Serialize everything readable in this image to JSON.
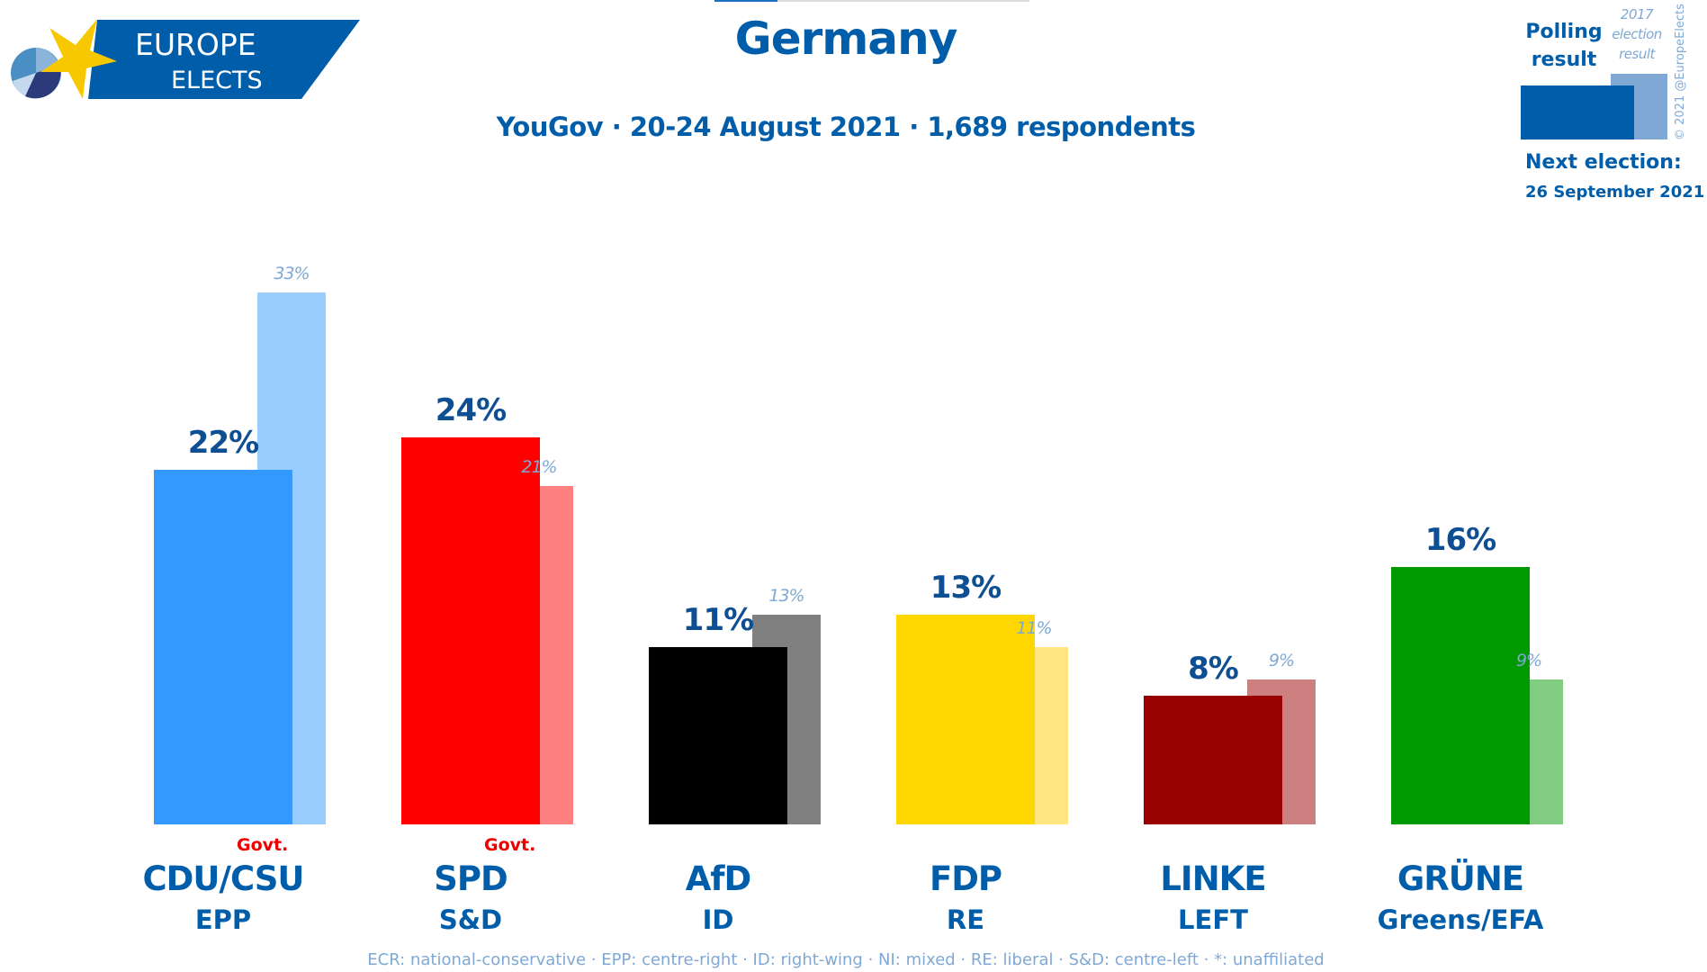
{
  "logo": {
    "line1": "EUROPE",
    "line2": "ELECTS"
  },
  "header": {
    "title": "Germany",
    "subtitle": "YouGov · 20-24 August 2021 · 1,689 respondents"
  },
  "legend": {
    "poll_label": "Polling result",
    "prev_label": "2017 election result",
    "copyright": "© 2021 @EuropeElects",
    "next_label": "Next election:",
    "next_date": "26 September 2021"
  },
  "footer": "ECR: national-conservative · EPP: centre-right · ID: right-wing · NI: mixed · RE: liberal · S&D: centre-left · *: unaffiliated",
  "chart_data": {
    "type": "bar",
    "title": "Germany",
    "categories": [
      "CDU/CSU",
      "SPD",
      "AfD",
      "FDP",
      "LINKE",
      "GRÜNE"
    ],
    "groups": [
      "EPP",
      "S&D",
      "ID",
      "RE",
      "LEFT",
      "Greens/EFA"
    ],
    "govt": [
      true,
      true,
      false,
      false,
      false,
      false
    ],
    "govt_label": "Govt.",
    "series": [
      {
        "name": "Polling result",
        "values": [
          22,
          24,
          11,
          13,
          8,
          16
        ],
        "labels": [
          "22%",
          "24%",
          "11%",
          "13%",
          "8%",
          "16%"
        ]
      },
      {
        "name": "2017 election result",
        "values": [
          33,
          21,
          13,
          11,
          9,
          9
        ],
        "labels": [
          "33%",
          "21%",
          "13%",
          "11%",
          "9%",
          "9%"
        ]
      }
    ],
    "colors": [
      "#3399ff",
      "#ff0000",
      "#000000",
      "#ffd700",
      "#990000",
      "#009900"
    ],
    "prev_colors": [
      "#99ccff",
      "#ff8080",
      "#808080",
      "#ffe680",
      "#cc7f7f",
      "#80cc80"
    ],
    "ylim": [
      0,
      35
    ]
  }
}
